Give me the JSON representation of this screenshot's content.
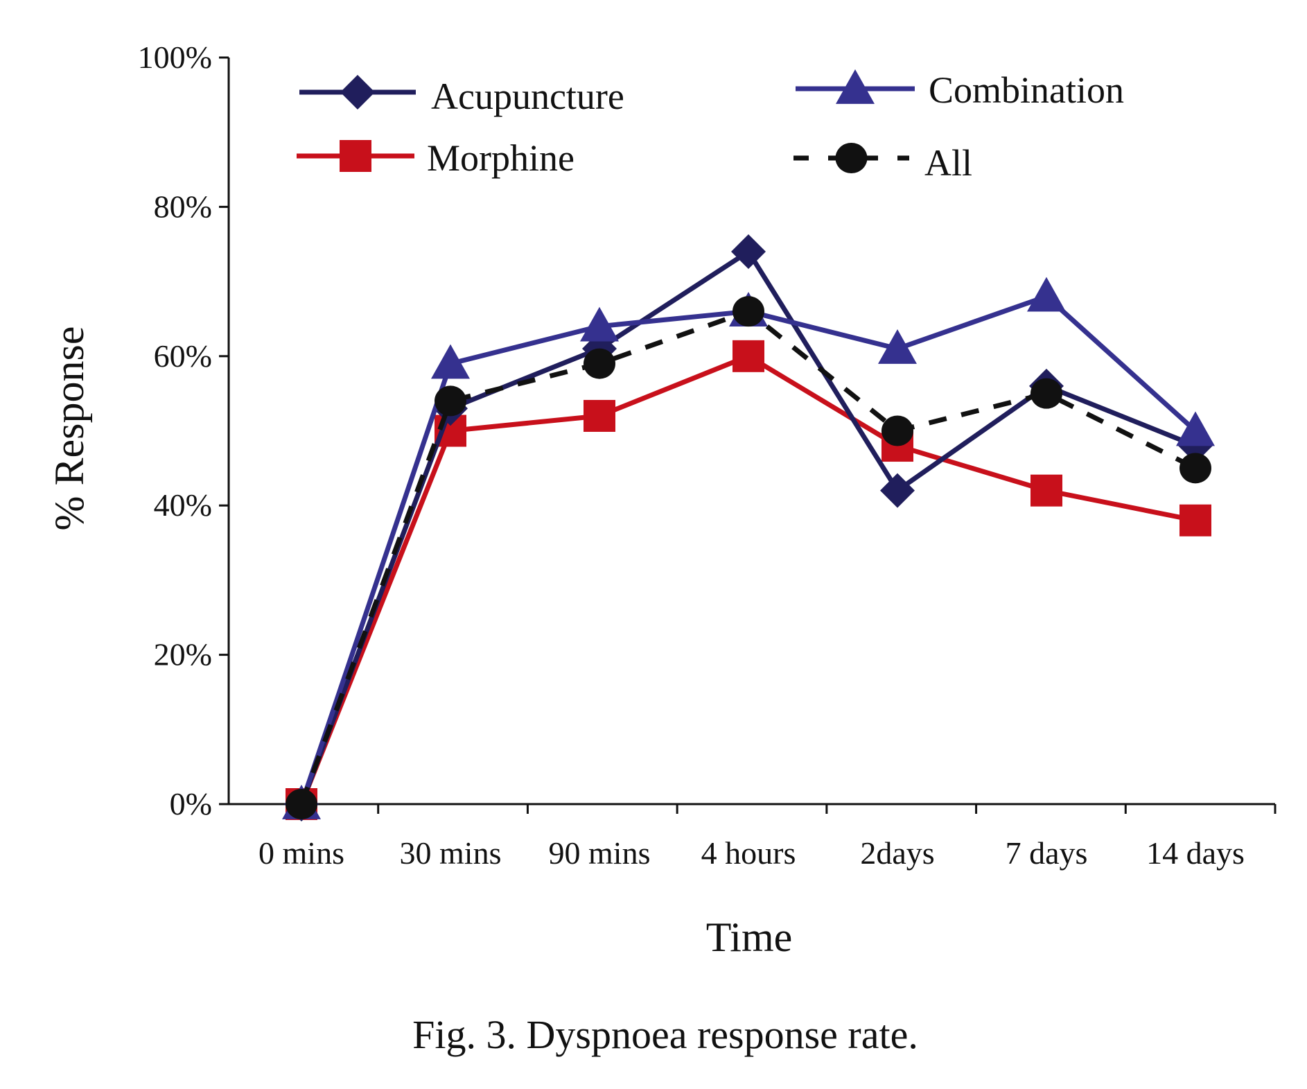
{
  "chart_data": {
    "type": "line",
    "categories": [
      "0 mins",
      "30 mins",
      "90 mins",
      "4 hours",
      "2days",
      "7 days",
      "14 days"
    ],
    "series": [
      {
        "name": "Acupuncture",
        "values": [
          0,
          53,
          61,
          74,
          42,
          56,
          48
        ],
        "color": "#201e5c",
        "marker": "diamond",
        "dash": "solid"
      },
      {
        "name": "Combination",
        "values": [
          0,
          59,
          64,
          66,
          61,
          68,
          50
        ],
        "color": "#35318f",
        "marker": "triangle",
        "dash": "solid"
      },
      {
        "name": "Morphine",
        "values": [
          0,
          50,
          52,
          60,
          48,
          42,
          38
        ],
        "color": "#c8101b",
        "marker": "square",
        "dash": "solid"
      },
      {
        "name": "All",
        "values": [
          0,
          54,
          59,
          66,
          50,
          55,
          45
        ],
        "color": "#111111",
        "marker": "circle",
        "dash": "dashed"
      }
    ],
    "ylim": [
      0,
      100
    ],
    "y_ticks": [
      "0%",
      "20%",
      "40%",
      "60%",
      "80%",
      "100%"
    ],
    "xlabel": "Time",
    "ylabel": "% Response",
    "grid": false,
    "legend_position": "top"
  },
  "caption": "Fig. 3. Dyspnoea response rate."
}
